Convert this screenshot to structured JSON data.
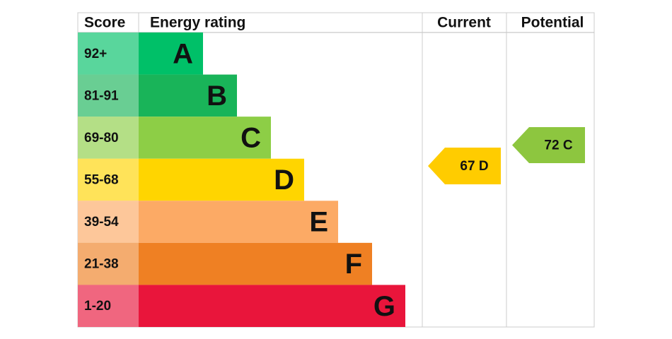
{
  "header": {
    "score": "Score",
    "rating": "Energy rating",
    "current": "Current",
    "potential": "Potential"
  },
  "bands": [
    {
      "score": "92+",
      "letter": "A",
      "color": "#00c068"
    },
    {
      "score": "81-91",
      "letter": "B",
      "color": "#19b459"
    },
    {
      "score": "69-80",
      "letter": "C",
      "color": "#8dce46"
    },
    {
      "score": "55-68",
      "letter": "D",
      "color": "#ffd500"
    },
    {
      "score": "39-54",
      "letter": "E",
      "color": "#fcaa65"
    },
    {
      "score": "21-38",
      "letter": "F",
      "color": "#ef8023"
    },
    {
      "score": "1-20",
      "letter": "G",
      "color": "#e9153b"
    }
  ],
  "current": {
    "label": "67 D",
    "color": "#ffcc00"
  },
  "potential": {
    "label": "72 C",
    "color": "#8dc63f"
  }
}
